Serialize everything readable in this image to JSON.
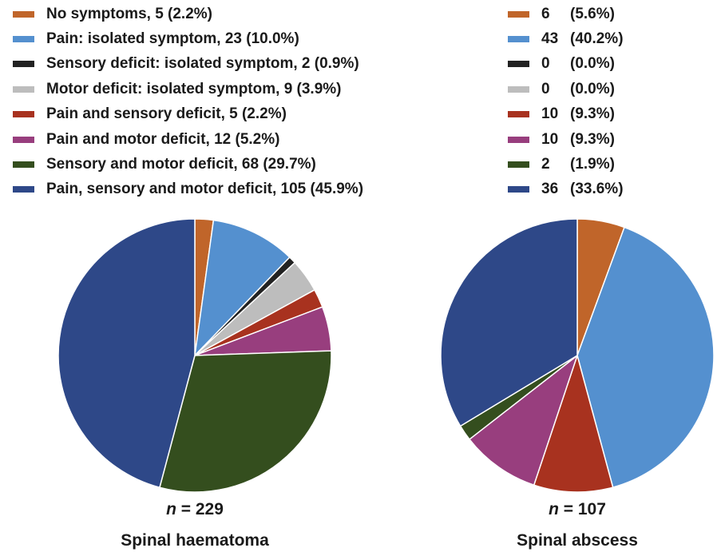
{
  "colors": {
    "no_symptoms": "#C0652A",
    "pain_isolated": "#5490CF",
    "sensory_isolated": "#222222",
    "motor_isolated": "#BDBDBD",
    "pain_sensory": "#A8321F",
    "pain_motor": "#983E7E",
    "sensory_motor": "#344E1E",
    "pain_sensory_motor": "#2E4888"
  },
  "legend_left": [
    {
      "label": "No symptoms, 5 (2.2%)"
    },
    {
      "label": "Pain: isolated symptom, 23 (10.0%)"
    },
    {
      "label": "Sensory deficit: isolated symptom, 2 (0.9%)"
    },
    {
      "label": "Motor deficit: isolated symptom, 9 (3.9%)"
    },
    {
      "label": "Pain and sensory deficit, 5 (2.2%)"
    },
    {
      "label": "Pain and motor deficit, 12 (5.2%)"
    },
    {
      "label": "Sensory and motor deficit, 68 (29.7%)"
    },
    {
      "label": "Pain, sensory and motor deficit, 105 (45.9%)"
    }
  ],
  "legend_right": [
    {
      "count": "6",
      "pct": "(5.6%)"
    },
    {
      "count": "43",
      "pct": "(40.2%)"
    },
    {
      "count": "0",
      "pct": "(0.0%)"
    },
    {
      "count": "0",
      "pct": "(0.0%)"
    },
    {
      "count": "10",
      "pct": "(9.3%)"
    },
    {
      "count": "10",
      "pct": "(9.3%)"
    },
    {
      "count": "2",
      "pct": "(1.9%)"
    },
    {
      "count": "36",
      "pct": "(33.6%)"
    }
  ],
  "chart_data": [
    {
      "type": "pie",
      "title": "Spinal haematoma",
      "n_prefix": "n",
      "n_value": "= 229",
      "categories": [
        "No symptoms",
        "Pain: isolated symptom",
        "Sensory deficit: isolated symptom",
        "Motor deficit: isolated symptom",
        "Pain and sensory deficit",
        "Pain and motor deficit",
        "Sensory and motor deficit",
        "Pain, sensory and motor deficit"
      ],
      "values": [
        5,
        23,
        2,
        9,
        5,
        12,
        68,
        105
      ],
      "start_angle_deg": 0,
      "direction": "clockwise"
    },
    {
      "type": "pie",
      "title": "Spinal abscess",
      "n_prefix": "n",
      "n_value": "= 107",
      "categories": [
        "No symptoms",
        "Pain: isolated symptom",
        "Sensory deficit: isolated symptom",
        "Motor deficit: isolated symptom",
        "Pain and sensory deficit",
        "Pain and motor deficit",
        "Sensory and motor deficit",
        "Pain, sensory and motor deficit"
      ],
      "values": [
        6,
        43,
        0,
        0,
        10,
        10,
        2,
        36
      ],
      "start_angle_deg": 0,
      "direction": "clockwise"
    }
  ]
}
